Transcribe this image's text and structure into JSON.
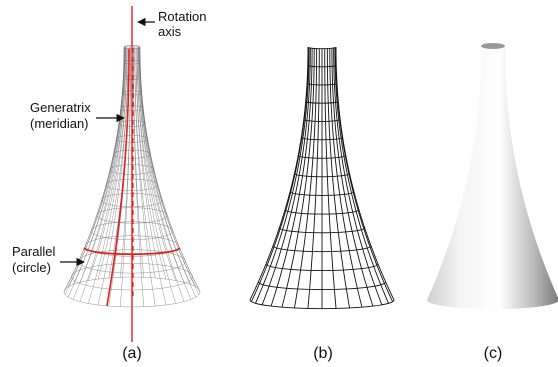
{
  "labels": {
    "rotation_axis_line1": "Rotation",
    "rotation_axis_line2": "axis",
    "generatrix_line1": "Generatrix",
    "generatrix_line2": "(meridian)",
    "parallel_line1": "Parallel",
    "parallel_line2": "(circle)"
  },
  "captions": {
    "a": "(a)",
    "b": "(b)",
    "c": "(c)"
  },
  "colors": {
    "axis": "#e02020",
    "mesh": "#666666",
    "wire": "#111111",
    "ink": "#111111"
  }
}
